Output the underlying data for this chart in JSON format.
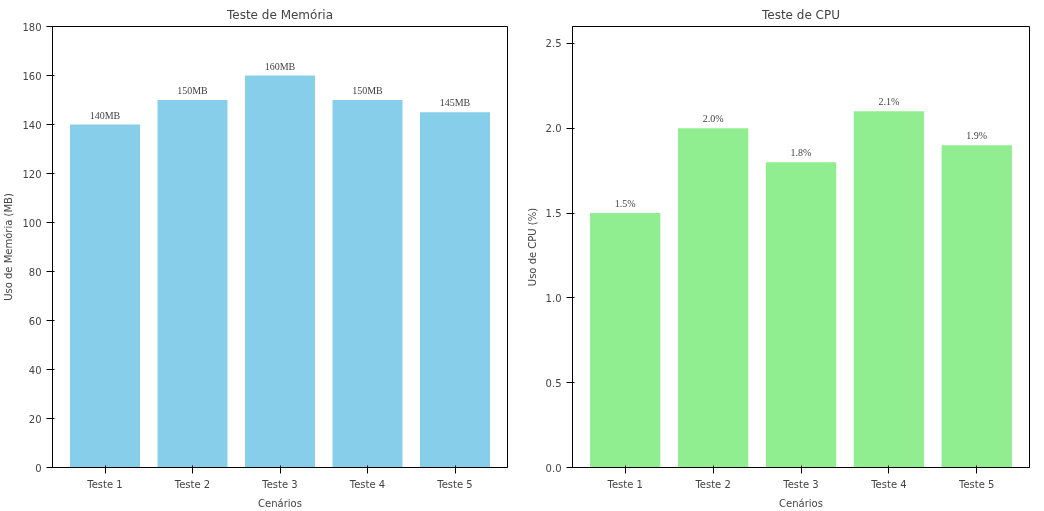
{
  "chart_data": [
    {
      "type": "bar",
      "title": "Teste de Memória",
      "xlabel": "Cenários",
      "ylabel": "Uso de Memória (MB)",
      "categories": [
        "Teste 1",
        "Teste 2",
        "Teste 3",
        "Teste 4",
        "Teste 5"
      ],
      "values": [
        140,
        150,
        160,
        150,
        145
      ],
      "color": "#87ceeb",
      "value_labels": [
        "140MB",
        "150MB",
        "160MB",
        "150MB",
        "145MB"
      ],
      "ylim": [
        0,
        180
      ],
      "yticks": [
        0,
        20,
        40,
        60,
        80,
        100,
        120,
        140,
        160,
        180
      ],
      "grid": false
    },
    {
      "type": "bar",
      "title": "Teste de CPU",
      "xlabel": "Cenários",
      "ylabel": "Uso de CPU (%)",
      "categories": [
        "Teste 1",
        "Teste 2",
        "Teste 3",
        "Teste 4",
        "Teste 5"
      ],
      "values": [
        1.5,
        2.0,
        1.8,
        2.1,
        1.9
      ],
      "color": "#90ee90",
      "value_labels": [
        "1.5%",
        "2.0%",
        "1.8%",
        "2.1%",
        "1.9%"
      ],
      "ylim": [
        0,
        2.6
      ],
      "yticks": [
        {
          "value": 0,
          "label": "0.0"
        },
        {
          "value": 0.5,
          "label": "0.5"
        },
        {
          "value": 1,
          "label": "1.0"
        },
        {
          "value": 1.5,
          "label": "1.5"
        },
        {
          "value": 2,
          "label": "2.0"
        },
        {
          "value": 2.5,
          "label": "2.5"
        }
      ],
      "grid": false
    }
  ]
}
